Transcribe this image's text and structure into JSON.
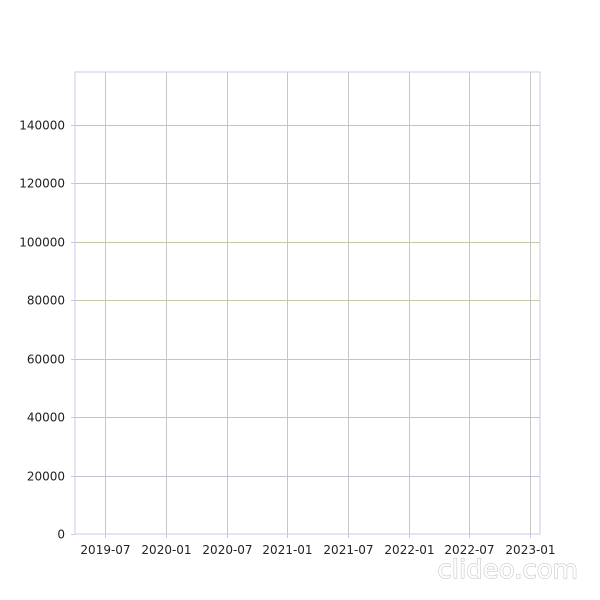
{
  "chart_data": {
    "type": "line",
    "title": "",
    "xlabel": "",
    "ylabel": "",
    "x_tick_labels": [
      "2019-07",
      "2020-01",
      "2020-07",
      "2021-01",
      "2021-07",
      "2022-01",
      "2022-07",
      "2023-01"
    ],
    "y_tick_labels": [
      "0",
      "20000",
      "40000",
      "60000",
      "80000",
      "100000",
      "120000",
      "140000"
    ],
    "y_ticks": [
      0,
      20000,
      40000,
      60000,
      80000,
      100000,
      120000,
      140000
    ],
    "xlim": [
      "2019-04",
      "2023-02"
    ],
    "ylim": [
      0,
      158000
    ],
    "grid": true,
    "series": []
  },
  "colors": {
    "axis": "#c8c8e6",
    "grid_horizontal": "#c0c0d8",
    "grid_vertical": "#c6c6c6",
    "grid_horizontal_mid": "#c8c8a8"
  },
  "watermark": {
    "text": "clideo.com"
  }
}
